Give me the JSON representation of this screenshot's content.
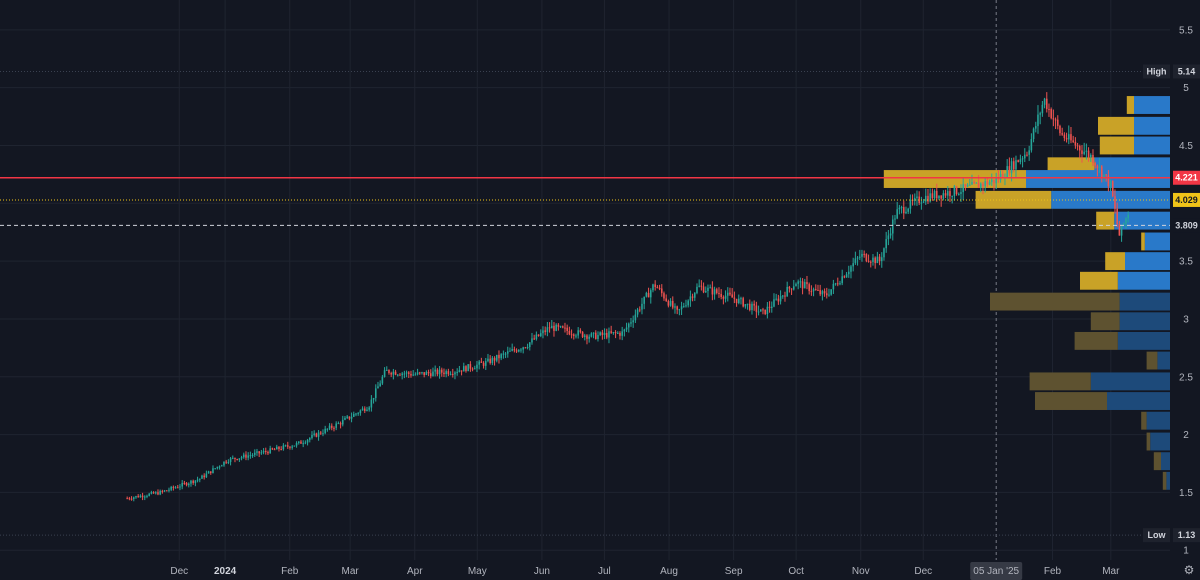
{
  "chart_data": {
    "type": "candlestick",
    "y_axis": {
      "ticks": [
        "5.5",
        "5",
        "4.5",
        "4",
        "3.5",
        "3",
        "2.5",
        "2",
        "1.5",
        "1"
      ],
      "ylim": [
        0.95,
        5.72
      ]
    },
    "x_axis": {
      "tick_labels": [
        "Dec",
        "2024",
        "Feb",
        "Mar",
        "Apr",
        "May",
        "Jun",
        "Jul",
        "Aug",
        "Sep",
        "Oct",
        "Nov",
        "Dec",
        "05 Jan '25",
        "Feb",
        "Mar"
      ],
      "highlighted_label": "05 Jan '25"
    },
    "price_series": [
      {
        "date": "2023-11-15",
        "close": 1.45
      },
      {
        "date": "2023-12-01",
        "close": 1.5
      },
      {
        "date": "2023-12-20",
        "close": 1.62
      },
      {
        "date": "2024-01-02",
        "close": 1.78
      },
      {
        "date": "2024-01-20",
        "close": 1.85
      },
      {
        "date": "2024-02-05",
        "close": 1.92
      },
      {
        "date": "2024-02-25",
        "close": 2.1
      },
      {
        "date": "2024-03-10",
        "close": 2.25
      },
      {
        "date": "2024-03-18",
        "close": 2.55
      },
      {
        "date": "2024-04-01",
        "close": 2.52
      },
      {
        "date": "2024-04-20",
        "close": 2.55
      },
      {
        "date": "2024-05-05",
        "close": 2.62
      },
      {
        "date": "2024-05-25",
        "close": 2.78
      },
      {
        "date": "2024-06-05",
        "close": 2.93
      },
      {
        "date": "2024-06-25",
        "close": 2.85
      },
      {
        "date": "2024-07-10",
        "close": 2.88
      },
      {
        "date": "2024-07-25",
        "close": 3.3
      },
      {
        "date": "2024-08-05",
        "close": 3.05
      },
      {
        "date": "2024-08-15",
        "close": 3.28
      },
      {
        "date": "2024-09-01",
        "close": 3.18
      },
      {
        "date": "2024-09-15",
        "close": 3.05
      },
      {
        "date": "2024-10-01",
        "close": 3.32
      },
      {
        "date": "2024-10-15",
        "close": 3.2
      },
      {
        "date": "2024-11-01",
        "close": 3.55
      },
      {
        "date": "2024-11-10",
        "close": 3.5
      },
      {
        "date": "2024-11-18",
        "close": 3.92
      },
      {
        "date": "2024-12-01",
        "close": 4.05
      },
      {
        "date": "2024-12-20",
        "close": 4.12
      },
      {
        "date": "2025-01-05",
        "close": 4.2
      },
      {
        "date": "2025-01-20",
        "close": 4.45
      },
      {
        "date": "2025-01-28",
        "close": 4.9
      },
      {
        "date": "2025-02-05",
        "close": 4.6
      },
      {
        "date": "2025-02-20",
        "close": 4.4
      },
      {
        "date": "2025-03-01",
        "close": 4.15
      },
      {
        "date": "2025-03-05",
        "close": 3.72
      },
      {
        "date": "2025-03-10",
        "close": 3.95
      }
    ],
    "price_lines": [
      {
        "label": "4.221",
        "value": 4.221,
        "color": "#f23645",
        "style": "solid"
      },
      {
        "label": "4.029",
        "value": 4.029,
        "color": "#f0c419",
        "style": "dotted"
      },
      {
        "label": "3.809",
        "value": 3.809,
        "color": "#d1d4dc",
        "style": "dashed"
      }
    ],
    "high": {
      "label": "High",
      "value": "5.14"
    },
    "low": {
      "label": "Low",
      "value": "1.13"
    },
    "volume_profile": {
      "bins": [
        {
          "price": 4.85,
          "up": 0.2,
          "down": 0.04
        },
        {
          "price": 4.67,
          "up": 0.2,
          "down": 0.2
        },
        {
          "price": 4.5,
          "up": 0.2,
          "down": 0.19
        },
        {
          "price": 4.32,
          "up": 0.42,
          "down": 0.26
        },
        {
          "price": 4.21,
          "up": 0.8,
          "down": 0.79
        },
        {
          "price": 4.03,
          "up": 0.66,
          "down": 0.42
        },
        {
          "price": 3.85,
          "up": 0.31,
          "down": 0.1
        },
        {
          "price": 3.67,
          "up": 0.14,
          "down": 0.02
        },
        {
          "price": 3.5,
          "up": 0.25,
          "down": 0.11
        },
        {
          "price": 3.33,
          "up": 0.29,
          "down": 0.21
        },
        {
          "price": 3.15,
          "up": 0.28,
          "down": 0.72
        },
        {
          "price": 2.98,
          "up": 0.28,
          "down": 0.16
        },
        {
          "price": 2.81,
          "up": 0.29,
          "down": 0.24
        },
        {
          "price": 2.64,
          "up": 0.07,
          "down": 0.06
        },
        {
          "price": 2.46,
          "up": 0.44,
          "down": 0.34
        },
        {
          "price": 2.29,
          "up": 0.35,
          "down": 0.4
        },
        {
          "price": 2.12,
          "up": 0.13,
          "down": 0.03
        },
        {
          "price": 1.94,
          "up": 0.11,
          "down": 0.02
        },
        {
          "price": 1.77,
          "up": 0.05,
          "down": 0.04
        },
        {
          "price": 1.6,
          "up": 0.02,
          "down": 0.02
        }
      ]
    }
  },
  "colors": {
    "background": "#131722",
    "grid": "#1f2430",
    "up_candle": "#26a69a",
    "down_candle": "#ef5350",
    "profile_up": "#2979c9",
    "profile_down": "#c9a227",
    "profile_up_dim": "#1d4a7a",
    "profile_down_dim": "#5e5230"
  },
  "icons": {
    "settings": "settings-icon"
  }
}
